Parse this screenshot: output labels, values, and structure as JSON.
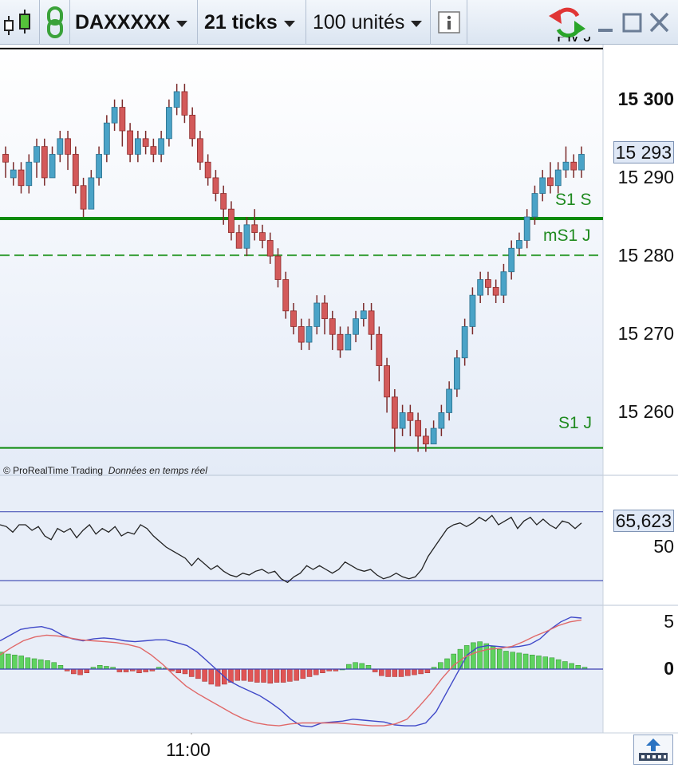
{
  "toolbar": {
    "instrument": "DAXXXXX",
    "period": "21 ticks",
    "units": "100 unités"
  },
  "copyright": {
    "brand": "© ProRealTime Trading",
    "note": "Données en temps réel"
  },
  "time_label": "11:00",
  "colors": {
    "bull": "#4aa3c7",
    "bear": "#d35a5a",
    "support": "#0c8a0c",
    "rsi": "#222222",
    "macd_fast": "#3f48c8",
    "macd_slow": "#e06868",
    "hist_pos": "#5fd35f",
    "hist_neg": "#e05555"
  },
  "chart_data": [
    {
      "type": "candlestick",
      "title": "",
      "ylim": [
        15252,
        15307
      ],
      "y_ticks": [
        {
          "value": 15300,
          "label": "15 300",
          "bold": true
        },
        {
          "value": 15290,
          "label": "15 290"
        },
        {
          "value": 15280,
          "label": "15 280"
        },
        {
          "value": 15270,
          "label": "15 270"
        },
        {
          "value": 15260,
          "label": "15 260"
        }
      ],
      "current_price": {
        "value": 15293,
        "label": "15 293"
      },
      "levels": [
        {
          "name": "Piv J",
          "value": 15306.5,
          "color": "#000000",
          "style": "solid",
          "label": "Piv J"
        },
        {
          "name": "S1 S",
          "value": 15284.8,
          "color": "#0c8a0c",
          "style": "thick",
          "label": "S1 S"
        },
        {
          "name": "mS1 J",
          "value": 15280.1,
          "color": "#3aa03a",
          "style": "dashed",
          "label": "mS1 J"
        },
        {
          "name": "S1 J",
          "value": 15255.5,
          "color": "#0c8a0c",
          "style": "solid",
          "label": "S1 J"
        }
      ],
      "candles": [
        [
          15293,
          15292,
          15294,
          15290
        ],
        [
          15290,
          15291,
          15292,
          15289
        ],
        [
          15291,
          15289,
          15292,
          15288
        ],
        [
          15289,
          15292,
          15293,
          15288
        ],
        [
          15292,
          15294,
          15295,
          15290
        ],
        [
          15294,
          15290,
          15295,
          15289
        ],
        [
          15290,
          15293,
          15294,
          15290
        ],
        [
          15293,
          15295,
          15296,
          15292
        ],
        [
          15295,
          15293,
          15296,
          15291
        ],
        [
          15293,
          15289,
          15294,
          15288
        ],
        [
          15289,
          15286,
          15290,
          15285
        ],
        [
          15286,
          15290,
          15291,
          15286
        ],
        [
          15290,
          15293,
          15294,
          15289
        ],
        [
          15293,
          15297,
          15298,
          15292
        ],
        [
          15297,
          15299,
          15300,
          15296
        ],
        [
          15299,
          15296,
          15300,
          15294
        ],
        [
          15296,
          15293,
          15297,
          15292
        ],
        [
          15293,
          15295,
          15296,
          15292
        ],
        [
          15295,
          15294,
          15296,
          15293
        ],
        [
          15294,
          15293,
          15295,
          15292
        ],
        [
          15293,
          15295,
          15296,
          15292
        ],
        [
          15295,
          15299,
          15300,
          15294
        ],
        [
          15299,
          15301,
          15302,
          15298
        ],
        [
          15301,
          15298,
          15302,
          15297
        ],
        [
          15298,
          15295,
          15299,
          15294
        ],
        [
          15295,
          15292,
          15296,
          15291
        ],
        [
          15292,
          15290,
          15293,
          15289
        ],
        [
          15290,
          15288,
          15291,
          15287
        ],
        [
          15288,
          15286,
          15289,
          15284
        ],
        [
          15286,
          15283,
          15287,
          15282
        ],
        [
          15283,
          15281,
          15284,
          15282
        ],
        [
          15281,
          15284,
          15285,
          15280
        ],
        [
          15284,
          15283,
          15286,
          15282
        ],
        [
          15283,
          15282,
          15284,
          15281
        ],
        [
          15282,
          15280,
          15283,
          15279
        ],
        [
          15280,
          15277,
          15281,
          15276
        ],
        [
          15277,
          15273,
          15278,
          15272
        ],
        [
          15273,
          15271,
          15274,
          15270
        ],
        [
          15271,
          15269,
          15272,
          15268
        ],
        [
          15269,
          15271,
          15272,
          15268
        ],
        [
          15271,
          15274,
          15275,
          15270
        ],
        [
          15274,
          15272,
          15275,
          15270
        ],
        [
          15272,
          15270,
          15273,
          15268
        ],
        [
          15270,
          15268,
          15271,
          15267
        ],
        [
          15268,
          15270,
          15271,
          15268
        ],
        [
          15270,
          15272,
          15273,
          15269
        ],
        [
          15272,
          15273,
          15274,
          15271
        ],
        [
          15273,
          15270,
          15274,
          15268
        ],
        [
          15270,
          15266,
          15271,
          15264
        ],
        [
          15266,
          15262,
          15267,
          15260
        ],
        [
          15262,
          15258,
          15263,
          15255
        ],
        [
          15258,
          15260,
          15261,
          15257
        ],
        [
          15260,
          15259,
          15261,
          15257
        ],
        [
          15259,
          15257,
          15260,
          15255
        ],
        [
          15257,
          15256,
          15258,
          15255
        ],
        [
          15256,
          15258,
          15259,
          15256
        ],
        [
          15258,
          15260,
          15261,
          15257
        ],
        [
          15260,
          15263,
          15264,
          15259
        ],
        [
          15263,
          15267,
          15268,
          15262
        ],
        [
          15267,
          15271,
          15272,
          15266
        ],
        [
          15271,
          15275,
          15276,
          15270
        ],
        [
          15275,
          15277,
          15278,
          15274
        ],
        [
          15277,
          15276,
          15278,
          15275
        ],
        [
          15276,
          15275,
          15277,
          15274
        ],
        [
          15275,
          15278,
          15279,
          15274
        ],
        [
          15278,
          15281,
          15282,
          15277
        ],
        [
          15281,
          15282,
          15283,
          15280
        ],
        [
          15282,
          15285,
          15286,
          15281
        ],
        [
          15285,
          15288,
          15289,
          15284
        ],
        [
          15288,
          15290,
          15291,
          15287
        ],
        [
          15290,
          15289,
          15292,
          15288
        ],
        [
          15289,
          15291,
          15292,
          15288
        ],
        [
          15291,
          15292,
          15294,
          15290
        ],
        [
          15292,
          15291,
          15293,
          15290
        ],
        [
          15291,
          15293,
          15294,
          15290
        ]
      ]
    },
    {
      "type": "line",
      "title": "",
      "ylim": [
        20,
        80
      ],
      "y_ticks": [
        {
          "value": 50,
          "label": "50"
        }
      ],
      "bands": [
        69,
        32
      ],
      "current_value": {
        "value": 65.623,
        "label": "65,623"
      },
      "series": [
        {
          "values": [
            62,
            61,
            58,
            62,
            62,
            59,
            61,
            56,
            54,
            60,
            58,
            60,
            55,
            59,
            62,
            57,
            60,
            58,
            61,
            56,
            58,
            57,
            62,
            60,
            56,
            53,
            50,
            48,
            46,
            44,
            40,
            44,
            41,
            38,
            40,
            37,
            35,
            34,
            36,
            35,
            37,
            38,
            36,
            37,
            33,
            31,
            34,
            36,
            40,
            38,
            40,
            38,
            36,
            38,
            42,
            40,
            38,
            37,
            38,
            35,
            33,
            34,
            36,
            34,
            33,
            34,
            38,
            45,
            50,
            55,
            60,
            62,
            63,
            61,
            63,
            66,
            64,
            67,
            62,
            64,
            66,
            60,
            64,
            66,
            62,
            65,
            62,
            60,
            64,
            63,
            60,
            63
          ]
        }
      ]
    },
    {
      "type": "bar",
      "title": "",
      "ylim": [
        -6.5,
        6.5
      ],
      "y_ticks": [
        {
          "value": 5,
          "label": "5"
        },
        {
          "value": 0,
          "label": "0",
          "bold": true
        }
      ],
      "series": [
        {
          "values": [
            1.8,
            1.6,
            1.5,
            1.4,
            1.2,
            1.1,
            1.0,
            0.9,
            0.7,
            0.4,
            -0.2,
            -0.5,
            -0.6,
            -0.4,
            0.2,
            0.4,
            0.3,
            0.2,
            -0.3,
            -0.3,
            -0.2,
            -0.4,
            -0.3,
            -0.2,
            0.2,
            0.1,
            -0.2,
            -0.4,
            -0.5,
            -0.8,
            -1.0,
            -1.3,
            -1.6,
            -1.8,
            -1.6,
            -1.4,
            -1.2,
            -1.2,
            -1.3,
            -1.4,
            -1.4,
            -1.5,
            -1.4,
            -1.4,
            -1.3,
            -1.2,
            -1.0,
            -0.8,
            -0.6,
            -0.4,
            -0.2,
            -0.2,
            0.0,
            0.5,
            0.7,
            0.6,
            0.4,
            -0.3,
            -0.7,
            -0.8,
            -0.8,
            -0.8,
            -0.7,
            -0.6,
            -0.5,
            -0.4,
            0.2,
            0.7,
            1.1,
            1.6,
            2.1,
            2.5,
            2.8,
            2.9,
            2.7,
            2.4,
            2.1,
            1.9,
            1.8,
            1.7,
            1.6,
            1.5,
            1.4,
            1.3,
            1.2,
            1.0,
            0.8,
            0.6,
            0.4,
            0.2
          ]
        },
        {
          "values": [
            3.0,
            3.6,
            4.2,
            4.4,
            4.5,
            4.2,
            3.6,
            3.2,
            3.0,
            3.2,
            3.3,
            3.2,
            3.0,
            2.9,
            3.0,
            3.1,
            3.1,
            2.8,
            2.5,
            1.8,
            0.8,
            -0.2,
            -1.2,
            -1.8,
            -2.3,
            -2.8,
            -3.5,
            -4.3,
            -5.3,
            -6.0,
            -6.1,
            -5.7,
            -5.6,
            -5.5,
            -5.3,
            -5.4,
            -5.5,
            -5.6,
            -5.9,
            -6.0,
            -6.0,
            -5.7,
            -4.5,
            -2.5,
            -0.5,
            1.5,
            2.3,
            2.5,
            2.4,
            2.3,
            2.4,
            2.6,
            3.2,
            4.2,
            5.0,
            5.5,
            5.4
          ]
        },
        {
          "values": [
            1.5,
            2.3,
            3.0,
            3.4,
            3.6,
            3.5,
            3.3,
            3.1,
            3.0,
            2.9,
            2.8,
            2.6,
            2.3,
            1.5,
            0.5,
            -0.7,
            -1.8,
            -2.6,
            -3.3,
            -4.0,
            -4.7,
            -5.3,
            -5.7,
            -5.9,
            -6.0,
            -5.8,
            -5.7,
            -5.7,
            -5.7,
            -5.7,
            -5.8,
            -5.9,
            -6.0,
            -6.0,
            -5.8,
            -5.3,
            -4.0,
            -2.6,
            -1.0,
            0.4,
            1.3,
            1.8,
            2.1,
            2.2,
            2.4,
            2.9,
            3.5,
            4.0,
            4.6,
            5.0,
            5.2
          ]
        }
      ]
    }
  ]
}
